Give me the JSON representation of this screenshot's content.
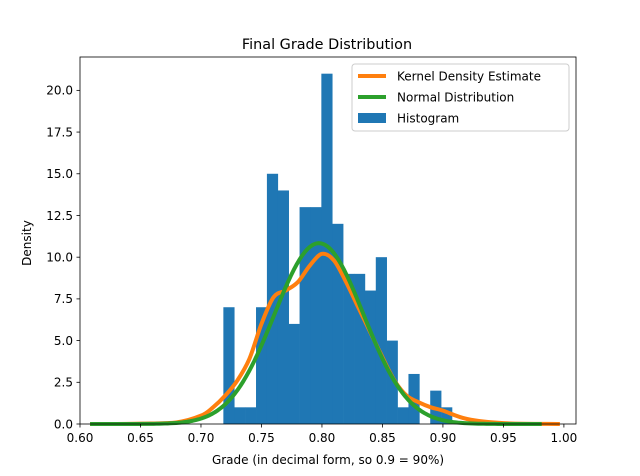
{
  "chart_data": {
    "type": "bar",
    "title": "Final Grade Distribution",
    "xlabel": "Grade (in decimal form, so 0.9 = 90%)",
    "ylabel": "Density",
    "xlim": [
      0.6,
      1.01
    ],
    "ylim": [
      0,
      22.0
    ],
    "xticks": [
      0.6,
      0.65,
      0.7,
      0.75,
      0.8,
      0.85,
      0.9,
      0.95,
      1.0
    ],
    "xtick_labels": [
      "0.60",
      "0.65",
      "0.70",
      "0.75",
      "0.80",
      "0.85",
      "0.90",
      "0.95",
      "1.00"
    ],
    "yticks": [
      0,
      2.5,
      5,
      7.5,
      10,
      12.5,
      15,
      17.5,
      20
    ],
    "ytick_labels": [
      "0.0",
      "2.5",
      "5.0",
      "7.5",
      "10.0",
      "12.5",
      "15.0",
      "17.5",
      "20.0"
    ],
    "histogram": {
      "name": "Histogram",
      "color": "#1f77b4",
      "bins": [
        {
          "x0": 0.7185,
          "x1": 0.7275,
          "value": 7
        },
        {
          "x0": 0.7275,
          "x1": 0.7365,
          "value": 1
        },
        {
          "x0": 0.7365,
          "x1": 0.7455,
          "value": 1
        },
        {
          "x0": 0.7455,
          "x1": 0.7545,
          "value": 7
        },
        {
          "x0": 0.7545,
          "x1": 0.7635,
          "value": 15
        },
        {
          "x0": 0.7635,
          "x1": 0.7725,
          "value": 14
        },
        {
          "x0": 0.7725,
          "x1": 0.7815,
          "value": 6
        },
        {
          "x0": 0.7815,
          "x1": 0.7905,
          "value": 13
        },
        {
          "x0": 0.7905,
          "x1": 0.7995,
          "value": 13
        },
        {
          "x0": 0.7995,
          "x1": 0.8085,
          "value": 21
        },
        {
          "x0": 0.8085,
          "x1": 0.8175,
          "value": 12
        },
        {
          "x0": 0.8175,
          "x1": 0.8265,
          "value": 9
        },
        {
          "x0": 0.8265,
          "x1": 0.8355,
          "value": 9
        },
        {
          "x0": 0.8355,
          "x1": 0.8445,
          "value": 8
        },
        {
          "x0": 0.8445,
          "x1": 0.8535,
          "value": 10
        },
        {
          "x0": 0.8535,
          "x1": 0.8625,
          "value": 5
        },
        {
          "x0": 0.8625,
          "x1": 0.8715,
          "value": 1
        },
        {
          "x0": 0.8715,
          "x1": 0.8805,
          "value": 3
        },
        {
          "x0": 0.8805,
          "x1": 0.8895,
          "value": 0
        },
        {
          "x0": 0.8895,
          "x1": 0.8985,
          "value": 2
        },
        {
          "x0": 0.8985,
          "x1": 0.9075,
          "value": 1
        }
      ]
    },
    "series": [
      {
        "name": "Kernel Density Estimate",
        "color": "#ff7f0e",
        "x": [
          0.61,
          0.65,
          0.68,
          0.7,
          0.71,
          0.72,
          0.73,
          0.74,
          0.75,
          0.76,
          0.77,
          0.78,
          0.79,
          0.8,
          0.81,
          0.82,
          0.83,
          0.84,
          0.85,
          0.86,
          0.87,
          0.88,
          0.89,
          0.9,
          0.92,
          0.95,
          0.995
        ],
        "y": [
          0.0,
          0.02,
          0.1,
          0.5,
          1.0,
          1.7,
          2.6,
          3.9,
          6.0,
          7.6,
          8.0,
          8.5,
          9.5,
          10.2,
          9.8,
          8.5,
          7.0,
          5.5,
          4.0,
          2.6,
          1.7,
          1.3,
          1.0,
          0.8,
          0.3,
          0.05,
          0.0
        ]
      },
      {
        "name": "Normal Distribution",
        "color": "#2ca02c",
        "mean": 0.7975,
        "std": 0.0368,
        "x_range": [
          0.61,
          0.98
        ]
      }
    ],
    "legend": {
      "position": "top-right",
      "entries": [
        "Kernel Density Estimate",
        "Normal Distribution",
        "Histogram"
      ]
    },
    "grid": false
  }
}
